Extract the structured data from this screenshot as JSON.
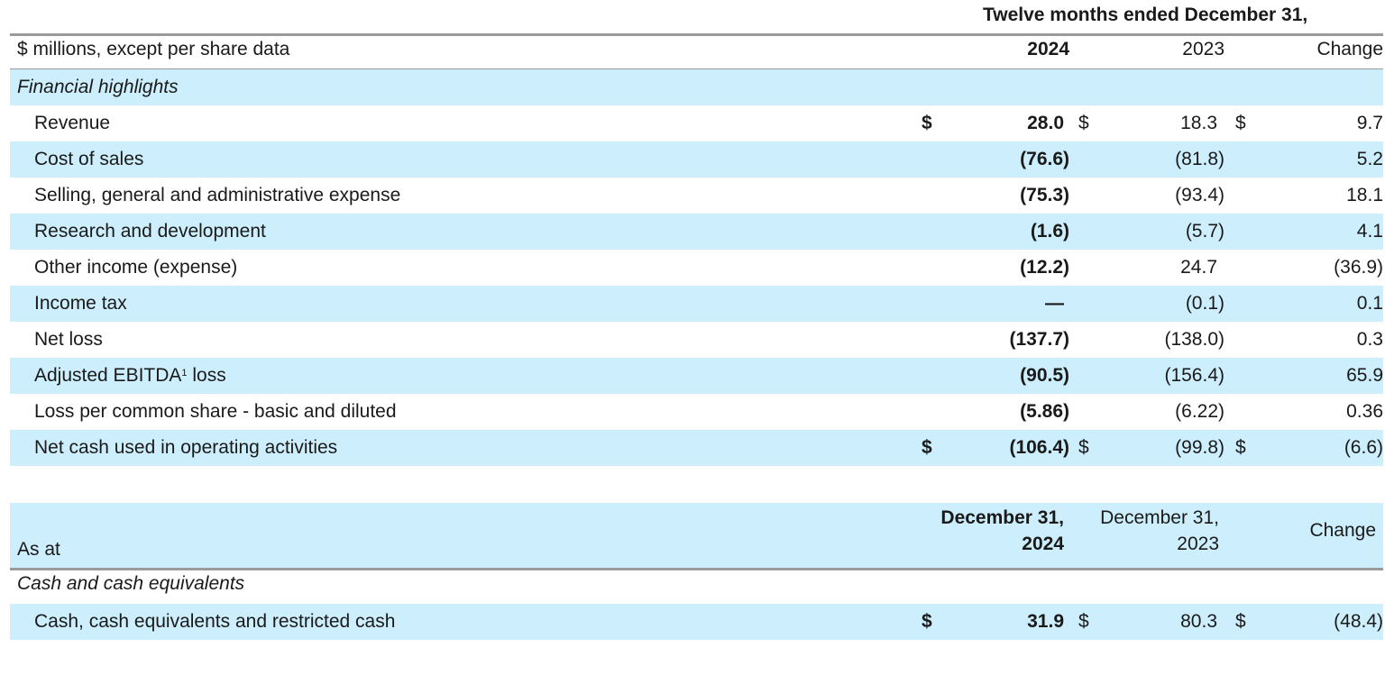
{
  "table1": {
    "period_header": "Twelve months ended December 31,",
    "units_label": "$ millions, except per share data",
    "col_2024": "2024",
    "col_2023": "2023",
    "col_change": "Change",
    "section_label": "Financial highlights",
    "currency_symbol": "$",
    "rows": [
      {
        "label": "Revenue",
        "v2024": "28.0",
        "v2023": "18.3",
        "change": "9.7"
      },
      {
        "label": "Cost of sales",
        "v2024": "(76.6)",
        "v2023": "(81.8)",
        "change": "5.2"
      },
      {
        "label": "Selling, general and administrative expense",
        "v2024": "(75.3)",
        "v2023": "(93.4)",
        "change": "18.1"
      },
      {
        "label": "Research and development",
        "v2024": "(1.6)",
        "v2023": "(5.7)",
        "change": "4.1"
      },
      {
        "label": "Other income (expense)",
        "v2024": "(12.2)",
        "v2023": "24.7",
        "change": "(36.9)"
      },
      {
        "label": "Income tax",
        "v2024": "—",
        "v2023": "(0.1)",
        "change": "0.1"
      },
      {
        "label": "Net loss",
        "v2024": "(137.7)",
        "v2023": "(138.0)",
        "change": "0.3"
      },
      {
        "label_pre": "Adjusted EBITDA",
        "label_sup": "1",
        "label_post": " loss",
        "v2024": "(90.5)",
        "v2023": "(156.4)",
        "change": "65.9"
      },
      {
        "label": "Loss per common share - basic and diluted",
        "v2024": "(5.86)",
        "v2023": "(6.22)",
        "change": "0.36"
      },
      {
        "label": "Net cash used in operating activities",
        "v2024": "(106.4)",
        "v2023": "(99.8)",
        "change": "(6.6)"
      }
    ]
  },
  "table2": {
    "as_at_label": "As at",
    "col_2024_line1": "December 31,",
    "col_2024_line2": "2024",
    "col_2023_line1": "December 31,",
    "col_2023_line2": "2023",
    "col_change": "Change",
    "section_label": "Cash and cash equivalents",
    "currency_symbol": "$",
    "rows": [
      {
        "label": "Cash, cash equivalents and restricted cash",
        "v2024": "31.9",
        "v2023": "80.3",
        "change": "(48.4)"
      }
    ]
  },
  "colors": {
    "row_shade": "#cdeefc",
    "rule": "#9a9a9a",
    "text": "#1a1a1a"
  }
}
